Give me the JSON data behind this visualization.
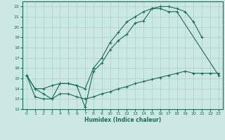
{
  "xlabel": "Humidex (Indice chaleur)",
  "ylabel": "",
  "background_color": "#cce8e4",
  "grid_color": "#aacfcb",
  "line_color": "#1a6b5a",
  "xlim": [
    -0.5,
    23.5
  ],
  "ylim": [
    12,
    22.5
  ],
  "xticks": [
    0,
    1,
    2,
    3,
    4,
    5,
    6,
    7,
    8,
    9,
    10,
    11,
    12,
    13,
    14,
    15,
    16,
    17,
    18,
    19,
    20,
    21,
    22,
    23
  ],
  "yticks": [
    12,
    13,
    14,
    15,
    16,
    17,
    18,
    19,
    20,
    21,
    22
  ],
  "line1_x": [
    0,
    1,
    2,
    3,
    4,
    5,
    6,
    7,
    8,
    9,
    10,
    11,
    12,
    13,
    14,
    15,
    16,
    17,
    18,
    19,
    20,
    21
  ],
  "line1_y": [
    15.3,
    14.0,
    13.5,
    13.0,
    14.5,
    14.5,
    14.3,
    12.2,
    15.7,
    16.5,
    17.8,
    18.7,
    19.3,
    20.4,
    20.6,
    21.8,
    22.0,
    22.0,
    21.8,
    21.5,
    20.5,
    19.0
  ],
  "line2_x": [
    0,
    1,
    2,
    3,
    4,
    5,
    6,
    7,
    8,
    9,
    10,
    11,
    12,
    13,
    14,
    15,
    16,
    17,
    18,
    23
  ],
  "line2_y": [
    15.3,
    14.0,
    14.0,
    14.3,
    14.5,
    14.5,
    14.3,
    14.0,
    16.0,
    17.0,
    18.5,
    19.5,
    20.5,
    21.0,
    21.5,
    21.8,
    21.8,
    21.5,
    21.5,
    15.3
  ],
  "line3_x": [
    0,
    1,
    2,
    3,
    4,
    5,
    6,
    7,
    8,
    9,
    10,
    11,
    12,
    13,
    14,
    15,
    16,
    17,
    18,
    19,
    20,
    21,
    22,
    23
  ],
  "line3_y": [
    15.3,
    13.2,
    13.0,
    13.0,
    13.5,
    13.5,
    13.2,
    13.0,
    13.2,
    13.5,
    13.7,
    14.0,
    14.2,
    14.5,
    14.7,
    14.9,
    15.1,
    15.3,
    15.5,
    15.7,
    15.5,
    15.5,
    15.5,
    15.5
  ]
}
